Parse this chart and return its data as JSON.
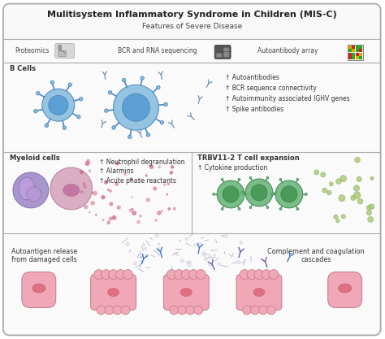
{
  "title": "Mulitisystem Inflammatory Syndrome in Children (MIS-C)",
  "subtitle": "Features of Severe Disease",
  "bg_color": "#ffffff",
  "bcell_color_out": "#89bfdf",
  "bcell_color_in": "#5b9fd4",
  "bcell_edge": "#4a85be",
  "myeloid1_color": "#9b85c4",
  "myeloid1_edge": "#7a64a4",
  "myeloid2_color": "#d4a0b8",
  "myeloid2_edge": "#b07090",
  "myeloid2_nuc": "#c070a0",
  "tcell_out": "#6ab87a",
  "tcell_in": "#4a9a5a",
  "tcell_edge": "#3a7a4a",
  "dot_color": "#d06080",
  "cytokine_dot": "#8bc48b",
  "antibody_blue": "#4477bb",
  "antibody_purple": "#7755aa",
  "pink_cell": "#f0a8b8",
  "pink_cell_edge": "#c07888",
  "pink_nucleus": "#e07080",
  "proteomics_text": "Proteomics",
  "bcr_text": "BCR and RNA sequencing",
  "autoantibody_text": "Autoantibody array",
  "bcells_label": "B Cells",
  "bcells_bullets": [
    "↑ Autoantibodies",
    "↑ BCR sequence connectivity",
    "↑ Autoimmunity associated IGHV genes",
    "↑ Spike antibodies"
  ],
  "myeloid_label": "Myeloid cells",
  "myeloid_bullets": [
    "↑ Neutrophil degranulation",
    "↑ Alarmins",
    "↑ Acute phase reactants"
  ],
  "trbv_label": "TRBV11-2 T cell expansion",
  "trbv_bullets": [
    "↑ Cytokine production"
  ],
  "bottom_left_text": "Autoantigen release\nfrom damaged cells",
  "bottom_right_text": "Complement and coagulation\ncascades",
  "grid_colors": [
    "#cc2222",
    "#22aa22",
    "#ddaa00",
    "#22aa22",
    "#cc2222",
    "#22aa22",
    "#cc2222",
    "#ddaa00",
    "#22aa22",
    "#ddaa00",
    "#22aa22",
    "#cc2222",
    "#ddaa00",
    "#cc2222",
    "#22aa22",
    "#22aa22"
  ]
}
